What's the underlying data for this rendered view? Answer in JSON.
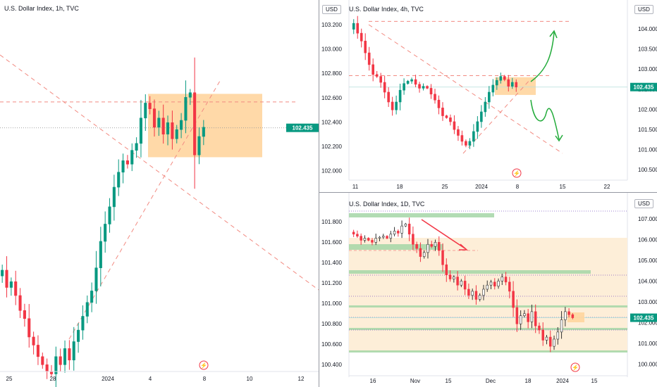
{
  "colors": {
    "up": "#089981",
    "down": "#f23645",
    "up_1d": "#ffffff",
    "zone_fill": "#ffd59e",
    "zone_light": "#fdeed8",
    "trend": "#f28b82",
    "arrow_green": "#22ab3a",
    "arrow_red": "#f23645",
    "support_green": "#a5d6a7",
    "axis_text": "#131722",
    "price_tag": "#089981"
  },
  "chart_data": [
    {
      "type": "candlestick",
      "title": "U.S. Dollar Index, 1h, TVC",
      "price_label": "102.435",
      "x_ticks": [
        "25",
        "28",
        "2024",
        "4",
        "8",
        "10",
        "12"
      ],
      "y_ticks": [],
      "ylim": [
        100.4,
        103.3
      ],
      "zone": {
        "y_from": 102.18,
        "y_to": 102.73
      },
      "hline_dashed": 102.66,
      "hline_dotted": 102.435,
      "path": [
        101.15,
        101.2,
        101.05,
        101.1,
        100.98,
        100.85,
        100.78,
        100.62,
        100.55,
        100.45,
        100.38,
        100.32,
        100.3,
        100.45,
        100.38,
        100.52,
        100.42,
        100.58,
        100.68,
        100.8,
        100.92,
        101.02,
        101.22,
        101.45,
        101.6,
        101.75,
        101.92,
        102.05,
        102.15,
        102.12,
        102.24,
        102.3,
        102.52,
        102.65,
        102.6,
        102.44,
        102.52,
        102.38,
        102.48,
        102.34,
        102.42,
        102.5,
        102.7,
        102.74,
        102.2,
        102.36,
        102.44
      ],
      "symbol": "U.S. Dollar Index"
    },
    {
      "type": "candlestick",
      "title": "U.S. Dollar Index, 4h, TVC",
      "currency": "USD",
      "price_label": "102.435",
      "x_ticks": [
        "11",
        "18",
        "25",
        "2024",
        "8",
        "15",
        "22"
      ],
      "y_ticks_left": [
        "103.200",
        "103.000",
        "102.800",
        "102.600",
        "102.400",
        "102.200",
        "102.000"
      ],
      "y_ticks_right": [
        "104.000",
        "103.500",
        "103.000",
        "102.500",
        "102.000",
        "101.500",
        "101.000",
        "100.500"
      ],
      "ylim": [
        100.35,
        104.25
      ],
      "zone": {
        "y_from": 102.23,
        "y_to": 102.68
      },
      "hline_dashed_low": 102.72,
      "hline_dashed_high": 104.1,
      "path": [
        103.9,
        104.05,
        103.8,
        103.6,
        103.3,
        103.0,
        102.75,
        102.7,
        102.55,
        102.3,
        102.05,
        101.85,
        102.05,
        102.35,
        102.52,
        102.58,
        102.62,
        102.5,
        102.4,
        102.45,
        102.4,
        102.25,
        102.1,
        101.9,
        101.7,
        101.65,
        101.55,
        101.35,
        101.2,
        101.05,
        100.95,
        101.05,
        101.3,
        101.55,
        101.8,
        102.05,
        102.3,
        102.48,
        102.6,
        102.7,
        102.62,
        102.45,
        102.55,
        102.43
      ],
      "symbol": "U.S. Dollar Index"
    },
    {
      "type": "candlestick",
      "title": "U.S. Dollar Index, 1D, TVC",
      "currency": "USD",
      "price_label": "102.435",
      "x_ticks": [
        "16",
        "Nov",
        "15",
        "Dec",
        "18",
        "2024",
        "15"
      ],
      "y_ticks_left": [
        "101.800",
        "101.600",
        "101.400",
        "101.200",
        "101.000",
        "100.800",
        "100.600",
        "100.400"
      ],
      "y_ticks_right": [
        "107.000",
        "106.000",
        "105.000",
        "104.000",
        "103.000",
        "102.000",
        "101.000",
        "100.000"
      ],
      "ylim": [
        99.8,
        107.6
      ],
      "path": [
        106.5,
        106.4,
        106.3,
        106.1,
        106.2,
        106.1,
        106.0,
        106.2,
        106.25,
        106.3,
        106.2,
        106.4,
        106.55,
        106.45,
        106.8,
        106.9,
        106.4,
        105.9,
        105.7,
        105.3,
        105.5,
        105.9,
        105.8,
        106.0,
        105.6,
        104.9,
        104.4,
        104.2,
        104.3,
        103.9,
        104.1,
        103.7,
        103.4,
        103.6,
        103.2,
        103.4,
        103.7,
        103.9,
        104.05,
        103.85,
        104.1,
        104.3,
        104.05,
        103.6,
        102.8,
        102.0,
        102.4,
        102.5,
        102.1,
        102.6,
        101.9,
        101.7,
        101.2,
        101.35,
        100.9,
        101.25,
        101.6,
        102.2,
        102.6,
        102.45,
        102.3
      ]
    }
  ]
}
